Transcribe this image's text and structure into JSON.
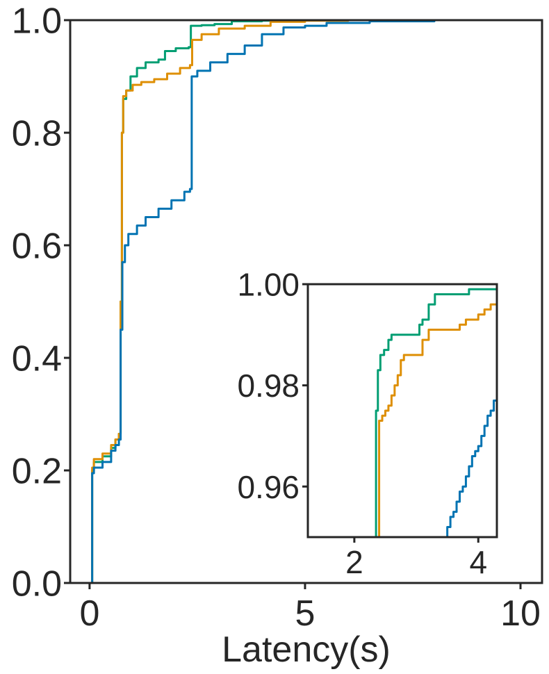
{
  "chart_data": [
    {
      "type": "line",
      "subtype": "ecdf",
      "title": "",
      "xlabel": "Latency(s)",
      "ylabel": "",
      "xlim": [
        -0.45,
        10.5
      ],
      "ylim": [
        0,
        1
      ],
      "xticks": [
        0,
        5,
        10
      ],
      "xtick_labels": [
        "0",
        "5",
        "10"
      ],
      "yticks": [
        0,
        0.2,
        0.4,
        0.6,
        0.8,
        1.0
      ],
      "ytick_labels": [
        "0.0",
        "0.2",
        "0.4",
        "0.6",
        "0.8",
        "1.0"
      ],
      "grid": false,
      "legend": "none",
      "series": [
        {
          "color": "#029e73",
          "points": [
            [
              0.05,
              0.0
            ],
            [
              0.06,
              0.2
            ],
            [
              0.1,
              0.215
            ],
            [
              0.3,
              0.225
            ],
            [
              0.5,
              0.24
            ],
            [
              0.6,
              0.255
            ],
            [
              0.68,
              0.265
            ],
            [
              0.72,
              0.5
            ],
            [
              0.75,
              0.8
            ],
            [
              0.78,
              0.86
            ],
            [
              0.85,
              0.875
            ],
            [
              0.95,
              0.9
            ],
            [
              1.1,
              0.915
            ],
            [
              1.3,
              0.925
            ],
            [
              1.6,
              0.93
            ],
            [
              1.75,
              0.945
            ],
            [
              2.0,
              0.95
            ],
            [
              2.3,
              0.952
            ],
            [
              2.35,
              0.99
            ],
            [
              2.6,
              0.991
            ],
            [
              2.9,
              0.993
            ],
            [
              3.3,
              0.998
            ],
            [
              4.0,
              0.999
            ],
            [
              5.0,
              1.0
            ],
            [
              10.0,
              1.0
            ]
          ]
        },
        {
          "color": "#de8f05",
          "points": [
            [
              0.05,
              0.0
            ],
            [
              0.06,
              0.205
            ],
            [
              0.1,
              0.22
            ],
            [
              0.3,
              0.23
            ],
            [
              0.5,
              0.245
            ],
            [
              0.6,
              0.255
            ],
            [
              0.68,
              0.265
            ],
            [
              0.72,
              0.5
            ],
            [
              0.75,
              0.8
            ],
            [
              0.78,
              0.865
            ],
            [
              0.85,
              0.875
            ],
            [
              1.0,
              0.885
            ],
            [
              1.2,
              0.89
            ],
            [
              1.5,
              0.895
            ],
            [
              1.8,
              0.905
            ],
            [
              2.1,
              0.915
            ],
            [
              2.33,
              0.92
            ],
            [
              2.38,
              0.965
            ],
            [
              2.6,
              0.975
            ],
            [
              3.0,
              0.985
            ],
            [
              3.6,
              0.99
            ],
            [
              4.2,
              0.997
            ],
            [
              5.0,
              0.999
            ],
            [
              6.0,
              1.0
            ],
            [
              10.0,
              1.0
            ]
          ]
        },
        {
          "color": "#0173b2",
          "points": [
            [
              0.05,
              0.0
            ],
            [
              0.06,
              0.195
            ],
            [
              0.1,
              0.205
            ],
            [
              0.3,
              0.215
            ],
            [
              0.5,
              0.235
            ],
            [
              0.6,
              0.245
            ],
            [
              0.68,
              0.255
            ],
            [
              0.72,
              0.45
            ],
            [
              0.76,
              0.57
            ],
            [
              0.82,
              0.6
            ],
            [
              0.9,
              0.62
            ],
            [
              1.1,
              0.635
            ],
            [
              1.3,
              0.65
            ],
            [
              1.6,
              0.665
            ],
            [
              1.9,
              0.68
            ],
            [
              2.2,
              0.695
            ],
            [
              2.33,
              0.7
            ],
            [
              2.37,
              0.9
            ],
            [
              2.5,
              0.91
            ],
            [
              2.8,
              0.925
            ],
            [
              3.2,
              0.94
            ],
            [
              3.6,
              0.955
            ],
            [
              4.0,
              0.975
            ],
            [
              4.5,
              0.987
            ],
            [
              5.0,
              0.99
            ],
            [
              5.5,
              0.995
            ],
            [
              6.5,
              0.998
            ],
            [
              8.0,
              1.0
            ],
            [
              10.0,
              1.0
            ]
          ]
        }
      ]
    },
    {
      "type": "line",
      "subtype": "ecdf-inset",
      "title": "",
      "xlabel": "",
      "ylabel": "",
      "xlim": [
        1.25,
        4.3
      ],
      "ylim": [
        0.95,
        1.0
      ],
      "xticks": [
        2,
        4
      ],
      "xtick_labels": [
        "2",
        "4"
      ],
      "yticks": [
        0.96,
        0.98,
        1.0
      ],
      "ytick_labels": [
        "0.96",
        "0.98",
        "1.00"
      ],
      "grid": false,
      "legend": "none",
      "series": [
        {
          "color": "#029e73",
          "points": [
            [
              1.25,
              0.95
            ],
            [
              2.33,
              0.95
            ],
            [
              2.35,
              0.975
            ],
            [
              2.38,
              0.983
            ],
            [
              2.42,
              0.986
            ],
            [
              2.48,
              0.987
            ],
            [
              2.55,
              0.989
            ],
            [
              2.6,
              0.99
            ],
            [
              3.0,
              0.99
            ],
            [
              3.05,
              0.992
            ],
            [
              3.1,
              0.993
            ],
            [
              3.2,
              0.996
            ],
            [
              3.3,
              0.998
            ],
            [
              3.8,
              0.998
            ],
            [
              3.85,
              0.999
            ],
            [
              4.3,
              0.999
            ]
          ]
        },
        {
          "color": "#de8f05",
          "points": [
            [
              1.25,
              0.95
            ],
            [
              2.38,
              0.95
            ],
            [
              2.4,
              0.973
            ],
            [
              2.45,
              0.974
            ],
            [
              2.5,
              0.975
            ],
            [
              2.55,
              0.976
            ],
            [
              2.6,
              0.978
            ],
            [
              2.65,
              0.98
            ],
            [
              2.7,
              0.982
            ],
            [
              2.75,
              0.985
            ],
            [
              2.8,
              0.986
            ],
            [
              3.0,
              0.986
            ],
            [
              3.1,
              0.989
            ],
            [
              3.2,
              0.991
            ],
            [
              3.6,
              0.991
            ],
            [
              3.7,
              0.992
            ],
            [
              3.8,
              0.993
            ],
            [
              4.0,
              0.994
            ],
            [
              4.1,
              0.995
            ],
            [
              4.2,
              0.996
            ],
            [
              4.3,
              0.997
            ]
          ]
        },
        {
          "color": "#0173b2",
          "points": [
            [
              3.45,
              0.95
            ],
            [
              3.5,
              0.952
            ],
            [
              3.55,
              0.954
            ],
            [
              3.6,
              0.955
            ],
            [
              3.65,
              0.957
            ],
            [
              3.7,
              0.959
            ],
            [
              3.75,
              0.96
            ],
            [
              3.8,
              0.962
            ],
            [
              3.85,
              0.964
            ],
            [
              3.9,
              0.966
            ],
            [
              3.95,
              0.967
            ],
            [
              4.0,
              0.968
            ],
            [
              4.05,
              0.97
            ],
            [
              4.1,
              0.972
            ],
            [
              4.15,
              0.974
            ],
            [
              4.2,
              0.975
            ],
            [
              4.25,
              0.977
            ],
            [
              4.3,
              0.978
            ]
          ]
        }
      ]
    }
  ]
}
